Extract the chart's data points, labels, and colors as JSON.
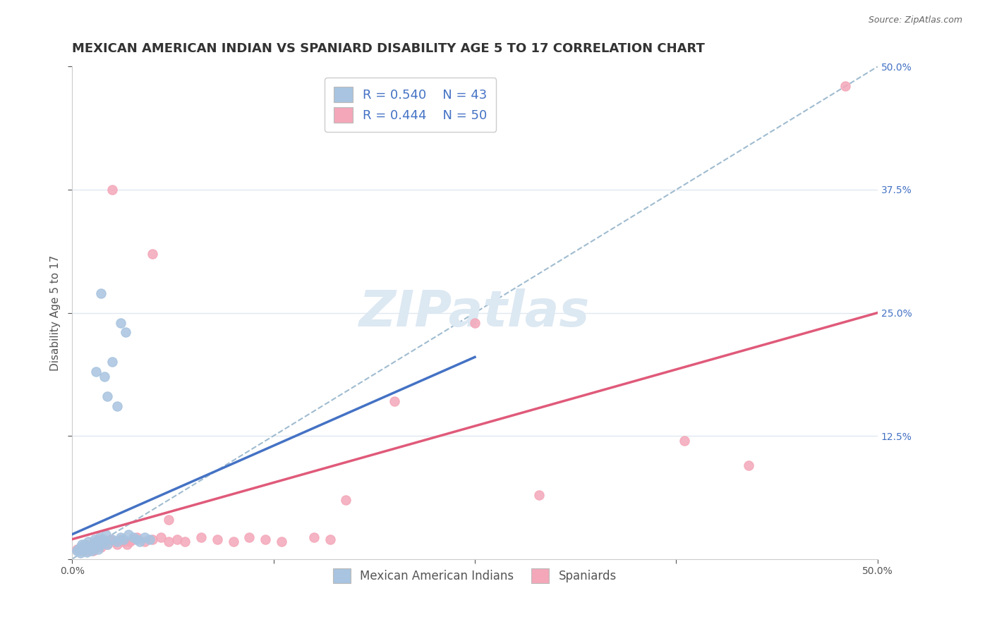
{
  "title": "MEXICAN AMERICAN INDIAN VS SPANIARD DISABILITY AGE 5 TO 17 CORRELATION CHART",
  "source": "Source: ZipAtlas.com",
  "xlabel": "",
  "ylabel": "Disability Age 5 to 17",
  "xlim": [
    0.0,
    0.5
  ],
  "ylim": [
    0.0,
    0.5
  ],
  "xticks": [
    0.0,
    0.125,
    0.25,
    0.375,
    0.5
  ],
  "xticklabels": [
    "0.0%",
    "",
    "",
    "",
    "50.0%"
  ],
  "ytick_right_labels": [
    "50.0%",
    "37.5%",
    "25.0%",
    "12.5%"
  ],
  "ytick_right_positions": [
    0.5,
    0.375,
    0.25,
    0.125
  ],
  "r_blue": 0.54,
  "n_blue": 43,
  "r_pink": 0.444,
  "n_pink": 50,
  "blue_color": "#a8c4e0",
  "pink_color": "#f4a7b9",
  "blue_line_color": "#4472c4",
  "pink_line_color": "#e05a7a",
  "dashed_line_color": "#a0bcd0",
  "legend_text_color": "#4472c4",
  "watermark": "ZIPatlas",
  "watermark_color": "#dce8f2",
  "blue_scatter": [
    [
      0.003,
      0.008
    ],
    [
      0.004,
      0.01
    ],
    [
      0.005,
      0.012
    ],
    [
      0.005,
      0.006
    ],
    [
      0.006,
      0.015
    ],
    [
      0.007,
      0.008
    ],
    [
      0.007,
      0.012
    ],
    [
      0.008,
      0.01
    ],
    [
      0.008,
      0.015
    ],
    [
      0.009,
      0.007
    ],
    [
      0.01,
      0.012
    ],
    [
      0.01,
      0.018
    ],
    [
      0.011,
      0.01
    ],
    [
      0.012,
      0.008
    ],
    [
      0.013,
      0.015
    ],
    [
      0.014,
      0.02
    ],
    [
      0.015,
      0.012
    ],
    [
      0.015,
      0.018
    ],
    [
      0.016,
      0.01
    ],
    [
      0.017,
      0.022
    ],
    [
      0.018,
      0.015
    ],
    [
      0.019,
      0.02
    ],
    [
      0.02,
      0.018
    ],
    [
      0.021,
      0.025
    ],
    [
      0.022,
      0.015
    ],
    [
      0.025,
      0.02
    ],
    [
      0.028,
      0.018
    ],
    [
      0.03,
      0.022
    ],
    [
      0.032,
      0.02
    ],
    [
      0.035,
      0.025
    ],
    [
      0.038,
      0.022
    ],
    [
      0.04,
      0.02
    ],
    [
      0.042,
      0.018
    ],
    [
      0.045,
      0.022
    ],
    [
      0.048,
      0.02
    ],
    [
      0.018,
      0.27
    ],
    [
      0.03,
      0.24
    ],
    [
      0.033,
      0.23
    ],
    [
      0.025,
      0.2
    ],
    [
      0.02,
      0.185
    ],
    [
      0.015,
      0.19
    ],
    [
      0.022,
      0.165
    ],
    [
      0.028,
      0.155
    ]
  ],
  "pink_scatter": [
    [
      0.003,
      0.01
    ],
    [
      0.005,
      0.008
    ],
    [
      0.006,
      0.012
    ],
    [
      0.007,
      0.01
    ],
    [
      0.008,
      0.015
    ],
    [
      0.009,
      0.008
    ],
    [
      0.01,
      0.012
    ],
    [
      0.011,
      0.01
    ],
    [
      0.012,
      0.015
    ],
    [
      0.013,
      0.008
    ],
    [
      0.014,
      0.012
    ],
    [
      0.015,
      0.018
    ],
    [
      0.016,
      0.015
    ],
    [
      0.017,
      0.02
    ],
    [
      0.018,
      0.012
    ],
    [
      0.02,
      0.018
    ],
    [
      0.022,
      0.015
    ],
    [
      0.024,
      0.02
    ],
    [
      0.026,
      0.018
    ],
    [
      0.028,
      0.015
    ],
    [
      0.03,
      0.02
    ],
    [
      0.032,
      0.018
    ],
    [
      0.034,
      0.015
    ],
    [
      0.036,
      0.018
    ],
    [
      0.038,
      0.02
    ],
    [
      0.04,
      0.022
    ],
    [
      0.045,
      0.018
    ],
    [
      0.05,
      0.02
    ],
    [
      0.055,
      0.022
    ],
    [
      0.06,
      0.018
    ],
    [
      0.065,
      0.02
    ],
    [
      0.07,
      0.018
    ],
    [
      0.08,
      0.022
    ],
    [
      0.09,
      0.02
    ],
    [
      0.1,
      0.018
    ],
    [
      0.11,
      0.022
    ],
    [
      0.12,
      0.02
    ],
    [
      0.13,
      0.018
    ],
    [
      0.15,
      0.022
    ],
    [
      0.16,
      0.02
    ],
    [
      0.025,
      0.375
    ],
    [
      0.05,
      0.31
    ],
    [
      0.2,
      0.16
    ],
    [
      0.25,
      0.24
    ],
    [
      0.38,
      0.12
    ],
    [
      0.42,
      0.095
    ],
    [
      0.48,
      0.48
    ],
    [
      0.29,
      0.065
    ],
    [
      0.17,
      0.06
    ],
    [
      0.06,
      0.04
    ]
  ],
  "blue_line": [
    [
      0.0,
      0.025
    ],
    [
      0.25,
      0.205
    ]
  ],
  "pink_line": [
    [
      0.0,
      0.02
    ],
    [
      0.5,
      0.25
    ]
  ],
  "diag_line": [
    [
      0.0,
      0.0
    ],
    [
      0.5,
      0.5
    ]
  ],
  "grid_color": "#e0e8f0",
  "bg_color": "#ffffff",
  "title_fontsize": 13,
  "axis_fontsize": 11,
  "tick_fontsize": 10,
  "legend_fontsize": 13
}
